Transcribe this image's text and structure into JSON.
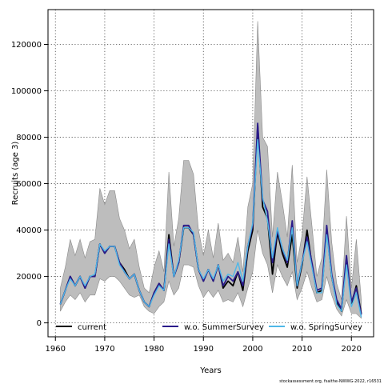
{
  "chart_data": {
    "type": "line",
    "xlabel": "Years",
    "ylabel": "Recruits (age 3)",
    "xlim": [
      1958.5,
      2024.5
    ],
    "ylim": [
      -6000,
      135000
    ],
    "x_ticks": [
      1960,
      1970,
      1980,
      1990,
      2000,
      2010,
      2020
    ],
    "y_ticks": [
      0,
      20000,
      40000,
      60000,
      80000,
      100000,
      120000
    ],
    "grid": true,
    "legend_position": "bottom",
    "credit": "stockassessment.org, fsaithe-NWWG-2022, r16531",
    "band": {
      "years": [
        1961,
        1962,
        1963,
        1964,
        1965,
        1966,
        1967,
        1968,
        1969,
        1970,
        1971,
        1972,
        1973,
        1974,
        1975,
        1976,
        1977,
        1978,
        1979,
        1980,
        1981,
        1982,
        1983,
        1984,
        1985,
        1986,
        1987,
        1988,
        1989,
        1990,
        1991,
        1992,
        1993,
        1994,
        1995,
        1996,
        1997,
        1998,
        1999,
        2000,
        2001,
        2002,
        2003,
        2004,
        2005,
        2006,
        2007,
        2008,
        2009,
        2010,
        2011,
        2012,
        2013,
        2014,
        2015,
        2016,
        2017,
        2018,
        2019,
        2020,
        2021,
        2022
      ],
      "lower": [
        5000,
        9000,
        12000,
        10000,
        13000,
        9000,
        12000,
        12000,
        19000,
        18000,
        20000,
        20000,
        18000,
        15000,
        12000,
        11000,
        12000,
        7000,
        5000,
        4000,
        7000,
        9000,
        18000,
        12000,
        15000,
        25000,
        25000,
        24000,
        16000,
        11000,
        14000,
        11000,
        14000,
        9000,
        10000,
        9000,
        13000,
        7000,
        15000,
        22000,
        40000,
        30000,
        25000,
        13000,
        25000,
        20000,
        16000,
        22000,
        10000,
        15000,
        22000,
        15000,
        9000,
        10000,
        20000,
        12000,
        6000,
        3000,
        10000,
        4000,
        4000,
        2000
      ],
      "upper": [
        15000,
        24000,
        36000,
        29000,
        36000,
        28000,
        35000,
        36000,
        58000,
        51000,
        57000,
        57000,
        45000,
        40000,
        32000,
        36000,
        24000,
        15000,
        13000,
        24000,
        31000,
        22000,
        65000,
        33000,
        45000,
        70000,
        70000,
        64000,
        40000,
        29000,
        40000,
        28000,
        43000,
        27000,
        30000,
        26000,
        37000,
        22000,
        50000,
        60000,
        130000,
        80000,
        76000,
        37000,
        65000,
        52000,
        37000,
        68000,
        26000,
        38000,
        63000,
        42000,
        20000,
        28000,
        66000,
        35000,
        17000,
        10000,
        46000,
        15000,
        36000,
        10000
      ]
    },
    "series": [
      {
        "name": "current",
        "color": "#000000",
        "x": [
          1961,
          1962,
          1963,
          1964,
          1965,
          1966,
          1967,
          1968,
          1969,
          1970,
          1971,
          1972,
          1973,
          1974,
          1975,
          1976,
          1977,
          1978,
          1979,
          1980,
          1981,
          1982,
          1983,
          1984,
          1985,
          1986,
          1987,
          1988,
          1989,
          1990,
          1991,
          1992,
          1993,
          1994,
          1995,
          1996,
          1997,
          1998,
          1999,
          2000,
          2001,
          2002,
          2003,
          2004,
          2005,
          2006,
          2007,
          2008,
          2009,
          2010,
          2011,
          2012,
          2013,
          2014,
          2015,
          2016,
          2017,
          2018,
          2019,
          2020,
          2021,
          2022
        ],
        "y": [
          8000,
          14000,
          20000,
          16000,
          20000,
          15000,
          20000,
          20000,
          34000,
          30000,
          33000,
          33000,
          26000,
          23000,
          19000,
          21000,
          14000,
          9000,
          7000,
          13000,
          17000,
          14000,
          38000,
          20000,
          26000,
          41000,
          41000,
          38000,
          23000,
          18000,
          23000,
          18000,
          25000,
          15000,
          18000,
          16000,
          22000,
          14000,
          31000,
          40000,
          85000,
          50000,
          45000,
          21000,
          39000,
          30000,
          24000,
          38000,
          15000,
          25000,
          40000,
          25000,
          13000,
          14000,
          40000,
          20000,
          9000,
          5000,
          28000,
          8000,
          16000,
          4000
        ]
      },
      {
        "name": "w.o. SummerSurvey",
        "color": "#2a1b8a",
        "x": [
          1961,
          1962,
          1963,
          1964,
          1965,
          1966,
          1967,
          1968,
          1969,
          1970,
          1971,
          1972,
          1973,
          1974,
          1975,
          1976,
          1977,
          1978,
          1979,
          1980,
          1981,
          1982,
          1983,
          1984,
          1985,
          1986,
          1987,
          1988,
          1989,
          1990,
          1991,
          1992,
          1993,
          1994,
          1995,
          1996,
          1997,
          1998,
          1999,
          2000,
          2001,
          2002,
          2003,
          2004,
          2005,
          2006,
          2007,
          2008,
          2009,
          2010,
          2011,
          2012,
          2013,
          2014,
          2015,
          2016,
          2017,
          2018,
          2019,
          2020,
          2021,
          2022
        ],
        "y": [
          8000,
          14000,
          20000,
          16000,
          20000,
          15000,
          20000,
          20000,
          34000,
          30000,
          33000,
          33000,
          26000,
          22000,
          19000,
          21000,
          14000,
          9000,
          7000,
          13000,
          17000,
          14000,
          36000,
          20000,
          26000,
          42000,
          42000,
          38000,
          23000,
          18000,
          23000,
          18000,
          25000,
          16000,
          20000,
          18000,
          22000,
          16000,
          33000,
          42000,
          86000,
          53000,
          48000,
          26000,
          40000,
          32000,
          26000,
          44000,
          16000,
          26000,
          37000,
          26000,
          14000,
          15000,
          42000,
          21000,
          10000,
          6000,
          29000,
          9000,
          15000,
          3500
        ]
      },
      {
        "name": "w.o. SpringSurvey",
        "color": "#4fb8e8",
        "x": [
          1961,
          1962,
          1963,
          1964,
          1965,
          1966,
          1967,
          1968,
          1969,
          1970,
          1971,
          1972,
          1973,
          1974,
          1975,
          1976,
          1977,
          1978,
          1979,
          1980,
          1981,
          1982,
          1983,
          1984,
          1985,
          1986,
          1987,
          1988,
          1989,
          1990,
          1991,
          1992,
          1993,
          1994,
          1995,
          1996,
          1997,
          1998,
          1999,
          2000,
          2001,
          2002,
          2003,
          2004,
          2005,
          2006,
          2007,
          2008,
          2009,
          2010,
          2011,
          2012,
          2013,
          2014,
          2015,
          2016,
          2017,
          2018,
          2019,
          2020,
          2021,
          2022
        ],
        "y": [
          8000,
          14000,
          19000,
          16000,
          20000,
          16000,
          20000,
          21000,
          34000,
          31000,
          33000,
          33000,
          25000,
          22000,
          19000,
          21000,
          14000,
          9000,
          7000,
          12000,
          16000,
          14000,
          34000,
          20000,
          27000,
          41000,
          41000,
          39000,
          23000,
          19000,
          23000,
          19000,
          25000,
          18000,
          21000,
          20000,
          26000,
          18000,
          33000,
          43000,
          79000,
          54000,
          44000,
          28000,
          41000,
          32000,
          27000,
          41000,
          16000,
          26000,
          35000,
          24000,
          13000,
          13000,
          38000,
          20000,
          8000,
          5000,
          25000,
          7000,
          13000,
          2500
        ]
      }
    ]
  }
}
